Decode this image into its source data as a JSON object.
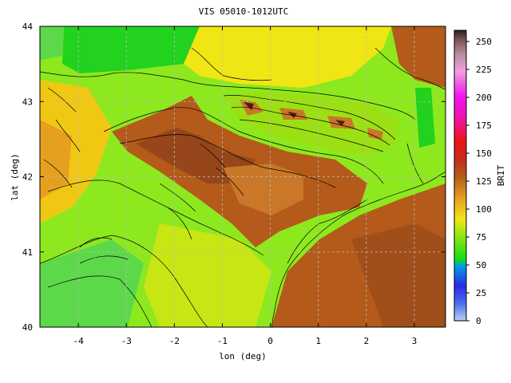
{
  "chart_data": {
    "type": "heatmap",
    "title": "VIS 05010-1012UTC",
    "xlabel": "lon (deg)",
    "ylabel": "lat (deg)",
    "xlim": [
      -4.8,
      3.65
    ],
    "ylim": [
      40,
      44
    ],
    "xticks": [
      -4,
      -3,
      -2,
      -1,
      0,
      1,
      2,
      3
    ],
    "xtick_labels": [
      "-4",
      "-3",
      "-2",
      "-1",
      "0",
      "1",
      "2",
      "3"
    ],
    "yticks": [
      40,
      41,
      42,
      43,
      44
    ],
    "ytick_labels": [
      "40",
      "41",
      "42",
      "43",
      "44"
    ],
    "grid": true,
    "colorbar": {
      "label": "BRIT",
      "range": [
        0,
        260
      ],
      "ticks": [
        0,
        25,
        50,
        75,
        100,
        125,
        150,
        175,
        200,
        225,
        250
      ],
      "tick_labels": [
        "0",
        "25",
        "50",
        "75",
        "100",
        "125",
        "150",
        "175",
        "200",
        "225",
        "250"
      ]
    },
    "colors": {
      "green": "#22d21e",
      "lightgreen": "#8ee81e",
      "yellow": "#f0e614",
      "orange": "#e6a020",
      "brown": "#b45a1a",
      "darkbrown": "#7a3a14",
      "sea": "#1ed260"
    }
  }
}
